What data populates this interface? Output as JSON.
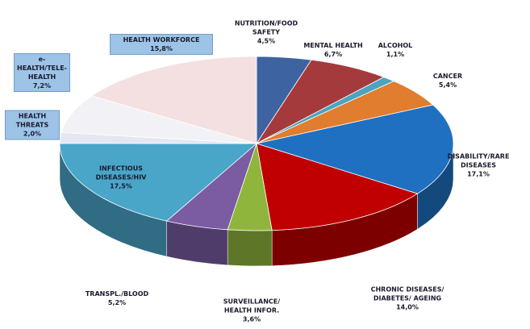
{
  "chart_data": {
    "type": "pie3d",
    "categories": [
      "NUTRITION/FOOD SAFETY",
      "MENTAL HEALTH",
      "ALCOHOL",
      "CANCER",
      "DISABILITY/RARE DISEASES",
      "CHRONIC DISEASES/ DIABETES/ AGEING",
      "SURVEILLANCE/ HEALTH INFOR.",
      "TRANSPL./BLOOD",
      "INFECTIOUS DISEASES/HIV",
      "HEALTH THREATS",
      "e-HEALTH/TELE-HEALTH",
      "HEALTH WORKFORCE"
    ],
    "values": [
      4.5,
      6.7,
      1.1,
      5.4,
      17.1,
      14.0,
      3.6,
      5.2,
      17.5,
      2.0,
      7.2,
      15.8
    ],
    "value_labels": [
      "4,5%",
      "6,7%",
      "1,1%",
      "5,4%",
      "17,1%",
      "14,0%",
      "3,6%",
      "5,2%",
      "17,5%",
      "2,0%",
      "7,2%",
      "15,8%"
    ],
    "colors": [
      "#3d64a0",
      "#a53a3c",
      "#4ba4c0",
      "#e07d2e",
      "#1f70c1",
      "#c00000",
      "#8fb53d",
      "#7b5ca3",
      "#4aa6c9",
      "#e4e6f2",
      "#f2f2f6",
      "#f4e0e0"
    ]
  }
}
